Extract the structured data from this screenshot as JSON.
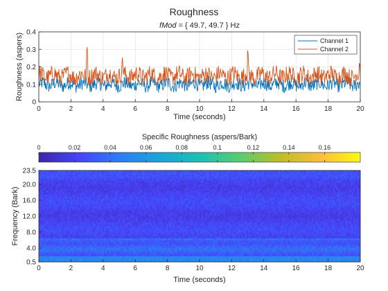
{
  "figure": {
    "title": "Roughness",
    "subtitle_prefix": "fMod",
    "subtitle_rest": " = { 49.7, 49.7 } Hz"
  },
  "chart_data": [
    {
      "type": "line",
      "xlabel": "Time (seconds)",
      "ylabel": "Roughness (aspers)",
      "xlim": [
        0,
        20
      ],
      "ylim": [
        0,
        0.4
      ],
      "xticks": [
        "0",
        "2",
        "4",
        "6",
        "8",
        "10",
        "12",
        "14",
        "16",
        "18",
        "20"
      ],
      "yticks": [
        "0",
        "0.1",
        "0.2",
        "0.3",
        "0.4"
      ],
      "grid": true,
      "legend_position": "top-right",
      "series": [
        {
          "name": "Channel 1",
          "color": "#0072BD",
          "mean": 0.1,
          "amplitude": 0.04,
          "num_points": 640
        },
        {
          "name": "Channel 2",
          "color": "#D95319",
          "mean": 0.15,
          "amplitude": 0.05,
          "num_points": 640,
          "peaks": [
            [
              3.0,
              0.32
            ],
            [
              5.2,
              0.26
            ],
            [
              13.0,
              0.31
            ],
            [
              19.95,
              0.24
            ]
          ]
        }
      ]
    },
    {
      "type": "heatmap",
      "colorbar_label": "Specific Roughness (aspers/Bark)",
      "colorbar_ticks": [
        "0",
        "0.02",
        "0.04",
        "0.06",
        "0.08",
        "0.1",
        "0.12",
        "0.14",
        "0.16"
      ],
      "clim": [
        0,
        0.18
      ],
      "colormap": [
        "#3e26a8",
        "#4743f8",
        "#2c7cf6",
        "#1aa5d8",
        "#1bc0b5",
        "#58cc70",
        "#bdbe27",
        "#fcbd3d",
        "#f9fb0e"
      ],
      "xlabel": "Time (seconds)",
      "ylabel": "Frequency (Bark)",
      "xlim": [
        0,
        20
      ],
      "ylim": [
        0.5,
        23.5
      ],
      "xticks": [
        "0",
        "2",
        "4",
        "6",
        "8",
        "10",
        "12",
        "14",
        "16",
        "18",
        "20"
      ],
      "yticks": [
        "0.5",
        "4.0",
        "8.0",
        "12.0",
        "16.0",
        "20.0",
        "23.5"
      ]
    }
  ]
}
